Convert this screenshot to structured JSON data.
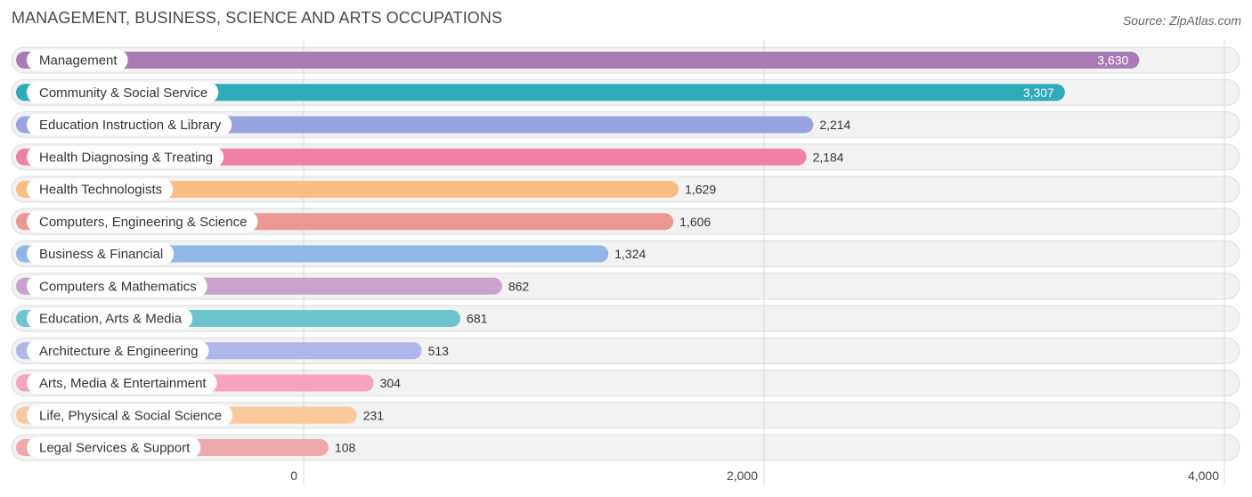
{
  "title": "MANAGEMENT, BUSINESS, SCIENCE AND ARTS OCCUPATIONS",
  "source": "Source: ZipAtlas.com",
  "chart_data": {
    "type": "bar",
    "orientation": "horizontal",
    "title": "MANAGEMENT, BUSINESS, SCIENCE AND ARTS OCCUPATIONS",
    "xlim": [
      0,
      4000
    ],
    "xticks": [
      0,
      2000,
      4000
    ],
    "xtick_labels": [
      "0",
      "2,000",
      "4,000"
    ],
    "grid": true,
    "categories": [
      "Management",
      "Community & Social Service",
      "Education Instruction & Library",
      "Health Diagnosing & Treating",
      "Health Technologists",
      "Computers, Engineering & Science",
      "Business & Financial",
      "Computers & Mathematics",
      "Education, Arts & Media",
      "Architecture & Engineering",
      "Arts, Media & Entertainment",
      "Life, Physical & Social Science",
      "Legal Services & Support"
    ],
    "values": [
      3630,
      3307,
      2214,
      2184,
      1629,
      1606,
      1324,
      862,
      681,
      513,
      304,
      231,
      108
    ],
    "value_labels": [
      "3,630",
      "3,307",
      "2,214",
      "2,184",
      "1,629",
      "1,606",
      "1,324",
      "862",
      "681",
      "513",
      "304",
      "231",
      "108"
    ],
    "colors": [
      "#a97bb5",
      "#2eaab8",
      "#99a3e1",
      "#f27fa6",
      "#f9bd82",
      "#eb9894",
      "#8fb6e6",
      "#c7a3cb",
      "#6cc4cc",
      "#aeb6ea",
      "#f5a3c0",
      "#f9c99c",
      "#eeaaaa"
    ]
  }
}
